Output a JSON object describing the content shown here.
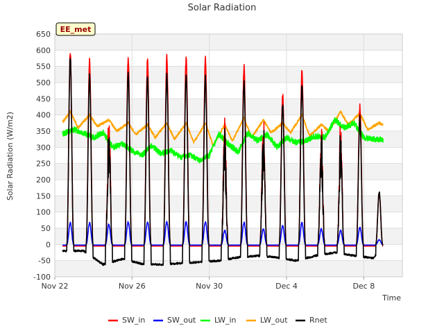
{
  "chart_data": {
    "type": "line",
    "title": "Solar Radiation",
    "xlabel": "Time",
    "ylabel": "Solar Radiation (W/m2)",
    "badge": "EE_met",
    "ylim": [
      -100,
      650
    ],
    "xlim_days": [
      0,
      18
    ],
    "yticks": [
      -100,
      -50,
      0,
      50,
      100,
      150,
      200,
      250,
      300,
      350,
      400,
      450,
      500,
      550,
      600,
      650
    ],
    "xticks": [
      {
        "label": "Nov 22",
        "day": 0
      },
      {
        "label": "Nov 26",
        "day": 4
      },
      {
        "label": "Nov 30",
        "day": 8
      },
      {
        "label": "Dec 4",
        "day": 12
      },
      {
        "label": "Dec 8",
        "day": 16
      }
    ],
    "legend_position": "bottom",
    "grid": true,
    "series": [
      {
        "name": "SW_in",
        "color": "#ff0000"
      },
      {
        "name": "SW_out",
        "color": "#0000ff"
      },
      {
        "name": "LW_in",
        "color": "#00ff00"
      },
      {
        "name": "LW_out",
        "color": "#ffa500"
      },
      {
        "name": "Rnet",
        "color": "#000000"
      }
    ],
    "daily_sw_in_peak": [
      {
        "day": 0.8,
        "value": 605
      },
      {
        "day": 1.8,
        "value": 577
      },
      {
        "day": 2.8,
        "value": 433
      },
      {
        "day": 3.8,
        "value": 586
      },
      {
        "day": 4.8,
        "value": 580
      },
      {
        "day": 5.8,
        "value": 588
      },
      {
        "day": 6.8,
        "value": 586
      },
      {
        "day": 7.8,
        "value": 583
      },
      {
        "day": 8.8,
        "value": 392
      },
      {
        "day": 9.8,
        "value": 560
      },
      {
        "day": 10.8,
        "value": 408
      },
      {
        "day": 11.8,
        "value": 473
      },
      {
        "day": 12.8,
        "value": 548
      },
      {
        "day": 13.8,
        "value": 403
      },
      {
        "day": 14.8,
        "value": 400
      },
      {
        "day": 15.8,
        "value": 435
      },
      {
        "day": 16.8,
        "value": 165
      }
    ],
    "daily_sw_out_peak": [
      {
        "day": 0.8,
        "value": 70
      },
      {
        "day": 1.8,
        "value": 70
      },
      {
        "day": 2.8,
        "value": 65
      },
      {
        "day": 3.8,
        "value": 72
      },
      {
        "day": 4.8,
        "value": 72
      },
      {
        "day": 5.8,
        "value": 73
      },
      {
        "day": 6.8,
        "value": 72
      },
      {
        "day": 7.8,
        "value": 73
      },
      {
        "day": 8.8,
        "value": 45
      },
      {
        "day": 9.8,
        "value": 72
      },
      {
        "day": 10.8,
        "value": 50
      },
      {
        "day": 11.8,
        "value": 60
      },
      {
        "day": 12.8,
        "value": 70
      },
      {
        "day": 13.8,
        "value": 50
      },
      {
        "day": 14.8,
        "value": 45
      },
      {
        "day": 15.8,
        "value": 55
      },
      {
        "day": 16.8,
        "value": 15
      }
    ],
    "daily_rnet_peak": [
      {
        "day": 0.8,
        "value": 590
      },
      {
        "day": 1.8,
        "value": 530
      },
      {
        "day": 2.8,
        "value": 390
      },
      {
        "day": 3.8,
        "value": 540
      },
      {
        "day": 4.8,
        "value": 525
      },
      {
        "day": 5.8,
        "value": 530
      },
      {
        "day": 6.8,
        "value": 530
      },
      {
        "day": 7.8,
        "value": 525
      },
      {
        "day": 8.8,
        "value": 360
      },
      {
        "day": 9.8,
        "value": 510
      },
      {
        "day": 10.8,
        "value": 380
      },
      {
        "day": 11.8,
        "value": 440
      },
      {
        "day": 12.8,
        "value": 500
      },
      {
        "day": 13.8,
        "value": 380
      },
      {
        "day": 14.8,
        "value": 370
      },
      {
        "day": 15.8,
        "value": 400
      },
      {
        "day": 16.8,
        "value": 165
      }
    ],
    "rnet_night_value": [
      {
        "day": 0,
        "value": -20
      },
      {
        "day": 1.5,
        "value": -20
      },
      {
        "day": 2.5,
        "value": -62
      },
      {
        "day": 3.5,
        "value": -45
      },
      {
        "day": 4.5,
        "value": -60
      },
      {
        "day": 5.5,
        "value": -62
      },
      {
        "day": 6.5,
        "value": -58
      },
      {
        "day": 7.5,
        "value": -55
      },
      {
        "day": 8.5,
        "value": -50
      },
      {
        "day": 9.5,
        "value": -40
      },
      {
        "day": 10.5,
        "value": -35
      },
      {
        "day": 11.5,
        "value": -40
      },
      {
        "day": 12.5,
        "value": -50
      },
      {
        "day": 13.5,
        "value": -35
      },
      {
        "day": 14.5,
        "value": -25
      },
      {
        "day": 15.5,
        "value": -35
      },
      {
        "day": 16.5,
        "value": -42
      },
      {
        "day": 17,
        "value": 0
      }
    ],
    "lw_in_values": [
      {
        "day": 0,
        "value": 332
      },
      {
        "day": 1,
        "value": 355
      },
      {
        "day": 1.5,
        "value": 345
      },
      {
        "day": 2,
        "value": 330
      },
      {
        "day": 2.5,
        "value": 345
      },
      {
        "day": 3,
        "value": 300
      },
      {
        "day": 3.5,
        "value": 310
      },
      {
        "day": 4,
        "value": 290
      },
      {
        "day": 4.5,
        "value": 275
      },
      {
        "day": 5,
        "value": 305
      },
      {
        "day": 5.5,
        "value": 280
      },
      {
        "day": 6,
        "value": 290
      },
      {
        "day": 6.5,
        "value": 270
      },
      {
        "day": 7,
        "value": 275
      },
      {
        "day": 7.5,
        "value": 260
      },
      {
        "day": 8,
        "value": 275
      },
      {
        "day": 8.5,
        "value": 340
      },
      {
        "day": 9,
        "value": 310
      },
      {
        "day": 9.5,
        "value": 285
      },
      {
        "day": 10,
        "value": 345
      },
      {
        "day": 10.5,
        "value": 320
      },
      {
        "day": 11,
        "value": 340
      },
      {
        "day": 11.5,
        "value": 300
      },
      {
        "day": 12,
        "value": 330
      },
      {
        "day": 12.5,
        "value": 315
      },
      {
        "day": 13,
        "value": 320
      },
      {
        "day": 13.5,
        "value": 335
      },
      {
        "day": 14,
        "value": 330
      },
      {
        "day": 14.5,
        "value": 385
      },
      {
        "day": 15,
        "value": 360
      },
      {
        "day": 15.5,
        "value": 375
      },
      {
        "day": 16,
        "value": 330
      },
      {
        "day": 16.5,
        "value": 325
      }
    ],
    "lw_out_values": [
      {
        "day": 0,
        "value": 345
      },
      {
        "day": 0.8,
        "value": 410
      },
      {
        "day": 1.2,
        "value": 360
      },
      {
        "day": 1.8,
        "value": 400
      },
      {
        "day": 2.2,
        "value": 365
      },
      {
        "day": 2.8,
        "value": 385
      },
      {
        "day": 3.2,
        "value": 350
      },
      {
        "day": 3.8,
        "value": 375
      },
      {
        "day": 4.2,
        "value": 340
      },
      {
        "day": 4.8,
        "value": 370
      },
      {
        "day": 5.2,
        "value": 330
      },
      {
        "day": 5.8,
        "value": 375
      },
      {
        "day": 6.2,
        "value": 325
      },
      {
        "day": 6.8,
        "value": 375
      },
      {
        "day": 7.2,
        "value": 315
      },
      {
        "day": 7.8,
        "value": 375
      },
      {
        "day": 8.2,
        "value": 305
      },
      {
        "day": 8.8,
        "value": 370
      },
      {
        "day": 9.2,
        "value": 320
      },
      {
        "day": 9.8,
        "value": 390
      },
      {
        "day": 10.2,
        "value": 330
      },
      {
        "day": 10.8,
        "value": 385
      },
      {
        "day": 11.2,
        "value": 345
      },
      {
        "day": 11.8,
        "value": 375
      },
      {
        "day": 12.2,
        "value": 345
      },
      {
        "day": 12.8,
        "value": 400
      },
      {
        "day": 13.2,
        "value": 335
      },
      {
        "day": 13.8,
        "value": 370
      },
      {
        "day": 14.2,
        "value": 350
      },
      {
        "day": 14.8,
        "value": 410
      },
      {
        "day": 15.2,
        "value": 370
      },
      {
        "day": 15.8,
        "value": 405
      },
      {
        "day": 16.2,
        "value": 355
      },
      {
        "day": 16.8,
        "value": 375
      },
      {
        "day": 17,
        "value": 370
      }
    ]
  }
}
